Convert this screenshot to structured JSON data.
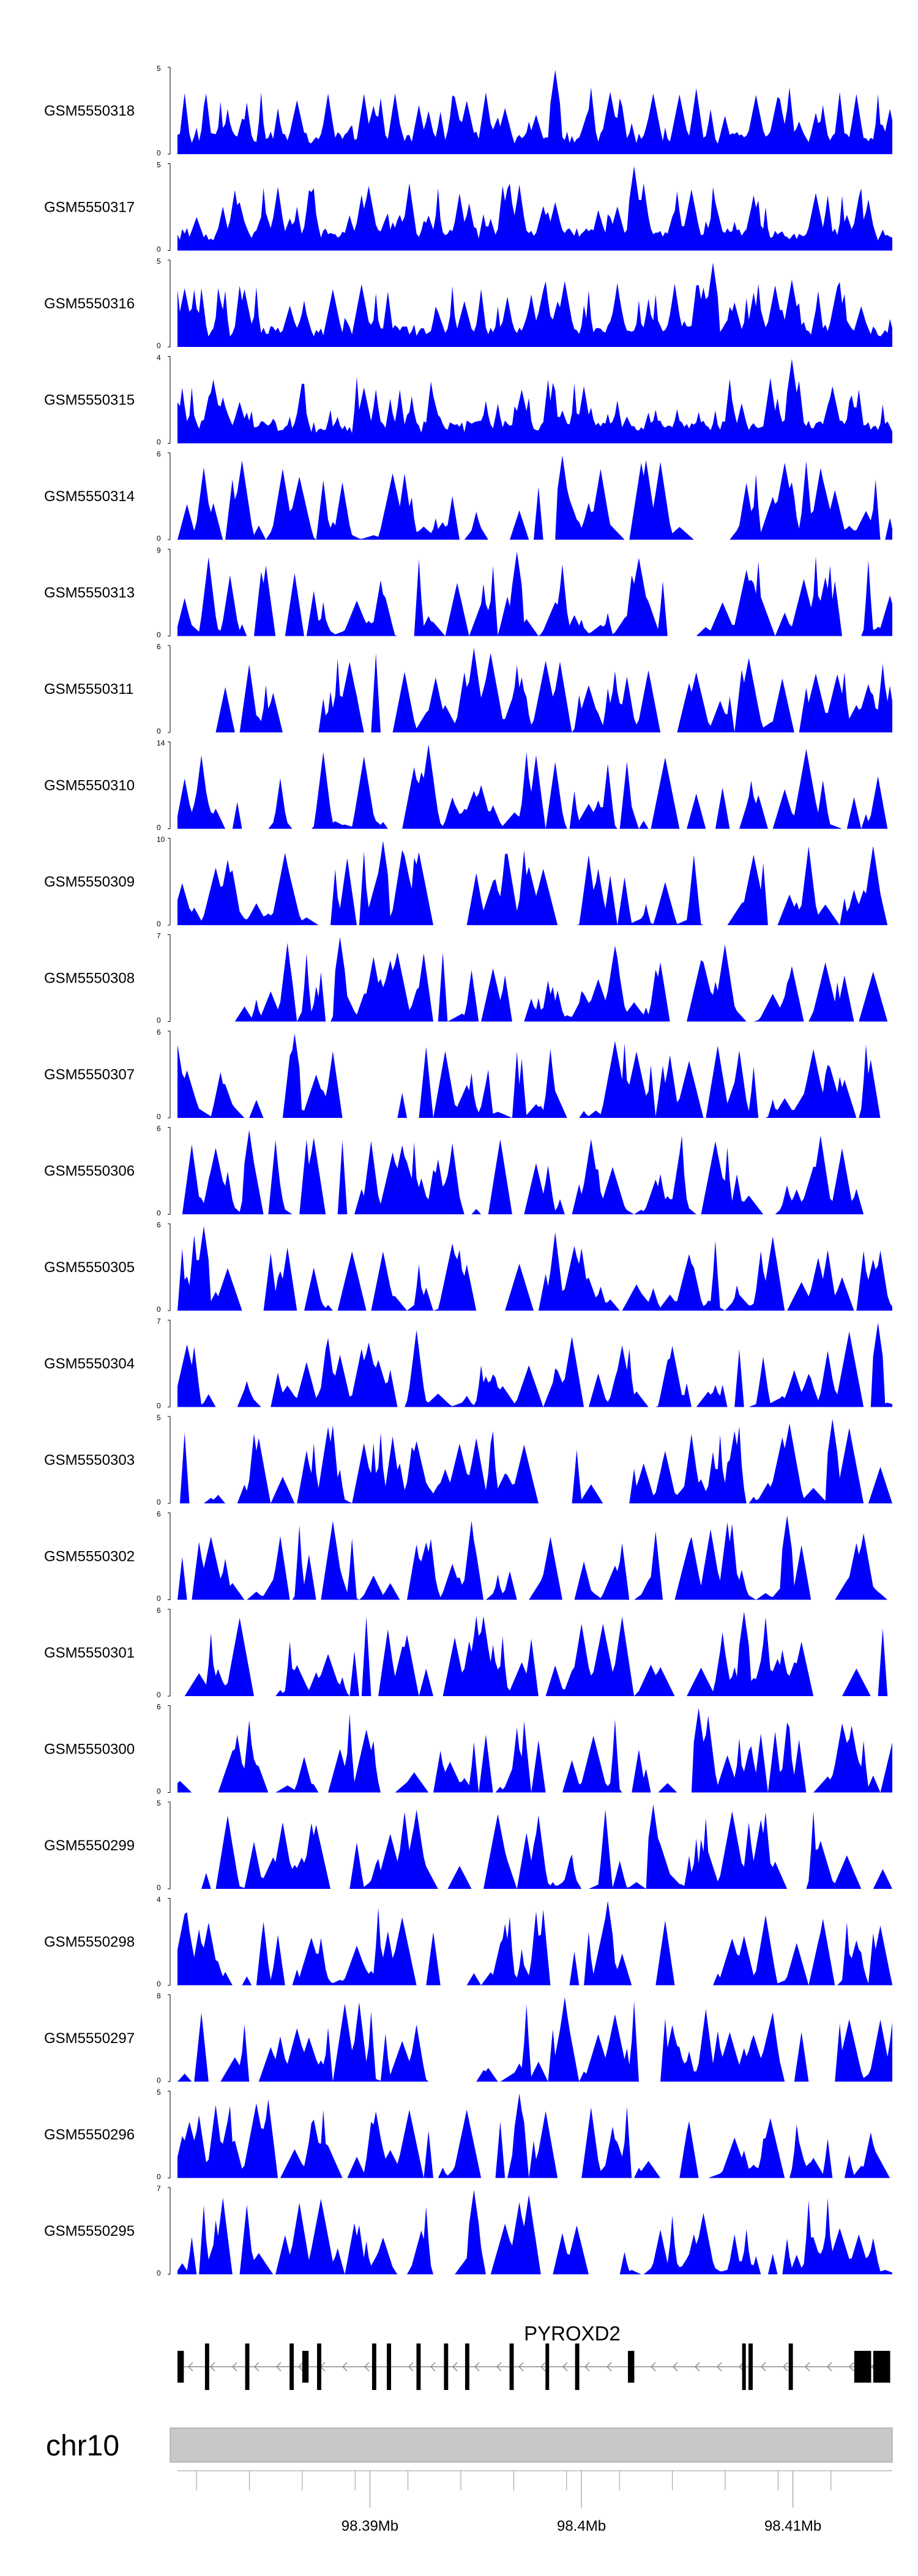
{
  "chart_data": {
    "type": "area",
    "series_color": "#0000ff",
    "x_unit": "Mb",
    "tracks": [
      {
        "name": "GSM5550318",
        "ylim": [
          0,
          5
        ]
      },
      {
        "name": "GSM5550317",
        "ylim": [
          0,
          5
        ]
      },
      {
        "name": "GSM5550316",
        "ylim": [
          0,
          5
        ]
      },
      {
        "name": "GSM5550315",
        "ylim": [
          0,
          4
        ]
      },
      {
        "name": "GSM5550314",
        "ylim": [
          0,
          6
        ]
      },
      {
        "name": "GSM5550313",
        "ylim": [
          0,
          9
        ]
      },
      {
        "name": "GSM5550311",
        "ylim": [
          0,
          6
        ]
      },
      {
        "name": "GSM5550310",
        "ylim": [
          0,
          14
        ]
      },
      {
        "name": "GSM5550309",
        "ylim": [
          0,
          10
        ]
      },
      {
        "name": "GSM5550308",
        "ylim": [
          0,
          7
        ]
      },
      {
        "name": "GSM5550307",
        "ylim": [
          0,
          6
        ]
      },
      {
        "name": "GSM5550306",
        "ylim": [
          0,
          6
        ]
      },
      {
        "name": "GSM5550305",
        "ylim": [
          0,
          6
        ]
      },
      {
        "name": "GSM5550304",
        "ylim": [
          0,
          7
        ]
      },
      {
        "name": "GSM5550303",
        "ylim": [
          0,
          5
        ]
      },
      {
        "name": "GSM5550302",
        "ylim": [
          0,
          6
        ]
      },
      {
        "name": "GSM5550301",
        "ylim": [
          0,
          6
        ]
      },
      {
        "name": "GSM5550300",
        "ylim": [
          0,
          6
        ]
      },
      {
        "name": "GSM5550299",
        "ylim": [
          0,
          5
        ]
      },
      {
        "name": "GSM5550298",
        "ylim": [
          0,
          4
        ]
      },
      {
        "name": "GSM5550297",
        "ylim": [
          0,
          8
        ]
      },
      {
        "name": "GSM5550296",
        "ylim": [
          0,
          5
        ]
      },
      {
        "name": "GSM5550295",
        "ylim": [
          0,
          7
        ]
      }
    ],
    "gene": {
      "name": "PYROXD2",
      "strand": "-",
      "color": "#000000",
      "exons": [
        {
          "start": 98.3809,
          "end": 98.3812
        },
        {
          "start": 98.3822,
          "end": 98.3824
        },
        {
          "start": 98.3841,
          "end": 98.3843
        },
        {
          "start": 98.3862,
          "end": 98.3864
        },
        {
          "start": 98.3868,
          "end": 98.3871
        },
        {
          "start": 98.3875,
          "end": 98.3877
        },
        {
          "start": 98.3901,
          "end": 98.3903
        },
        {
          "start": 98.3908,
          "end": 98.391
        },
        {
          "start": 98.3922,
          "end": 98.3924
        },
        {
          "start": 98.3935,
          "end": 98.3937
        },
        {
          "start": 98.3945,
          "end": 98.3947
        },
        {
          "start": 98.3966,
          "end": 98.3968
        },
        {
          "start": 98.3983,
          "end": 98.3984
        },
        {
          "start": 98.3997,
          "end": 98.3999
        },
        {
          "start": 98.4022,
          "end": 98.4025
        },
        {
          "start": 98.4076,
          "end": 98.4077
        },
        {
          "start": 98.4079,
          "end": 98.4081
        },
        {
          "start": 98.4098,
          "end": 98.41
        },
        {
          "start": 98.4129,
          "end": 98.4137
        },
        {
          "start": 98.4138,
          "end": 98.4146
        }
      ]
    },
    "ideogram": {
      "chromosome": "chr10",
      "band_color": "#c8c8c8"
    },
    "x_axis": {
      "range": [
        98.3809,
        98.4147
      ],
      "ticks": [
        98.3818,
        98.3843,
        98.3868,
        98.3893,
        98.3918,
        98.3943,
        98.3968,
        98.3993,
        98.4018,
        98.4043,
        98.4068,
        98.4093,
        98.4118
      ],
      "labeled_ticks": [
        {
          "value": 98.39,
          "label": "98.39Mb"
        },
        {
          "value": 98.4,
          "label": "98.4Mb"
        },
        {
          "value": 98.41,
          "label": "98.41Mb"
        }
      ]
    }
  }
}
